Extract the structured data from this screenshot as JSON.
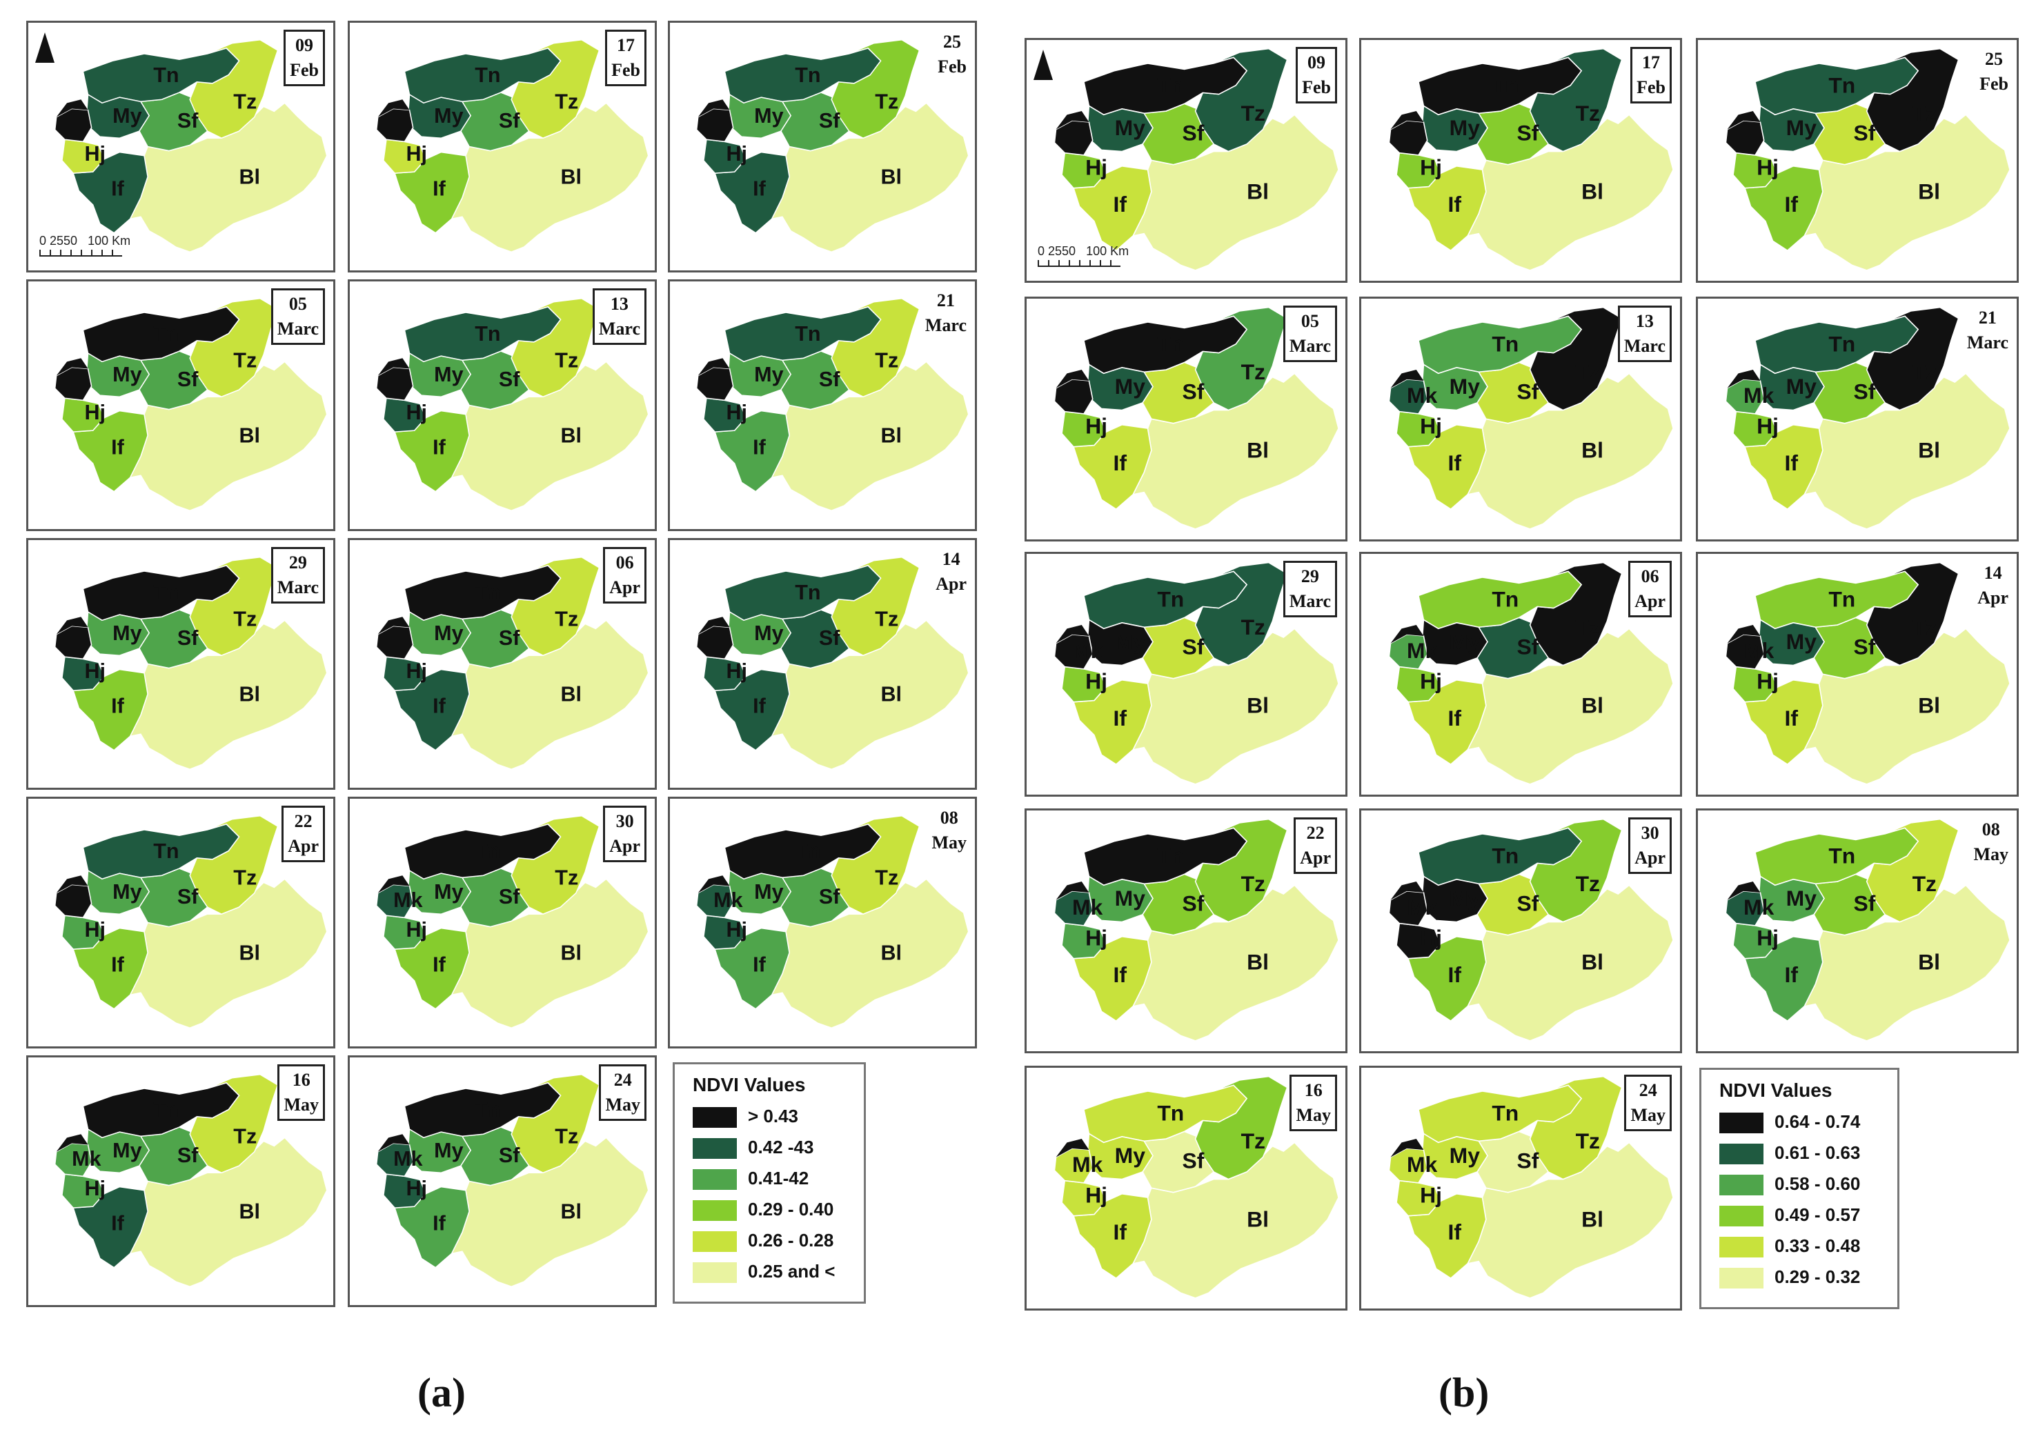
{
  "panel_a": {
    "caption": "(a)",
    "legend_title": "NDVI Values",
    "classes": [
      {
        "label": "> 0.43",
        "color": "#111111"
      },
      {
        "label": "0.42 -43",
        "color": "#1f5a40"
      },
      {
        "label": "0.41-42",
        "color": "#4fa54b"
      },
      {
        "label": "0.29 - 0.40",
        "color": "#86cc2d"
      },
      {
        "label": "0.26 - 0.28",
        "color": "#c8e23c"
      },
      {
        "label": "0.25 and <",
        "color": "#e9f3a0"
      }
    ],
    "scale": {
      "ticks": "0 2550",
      "end": "100 Km"
    },
    "dates": [
      {
        "day": "09",
        "month": "Feb"
      },
      {
        "day": "17",
        "month": "Feb"
      },
      {
        "day": "25",
        "month": "Feb"
      },
      {
        "day": "05",
        "month": "Marc"
      },
      {
        "day": "13",
        "month": "Marc"
      },
      {
        "day": "21",
        "month": "Marc"
      },
      {
        "day": "29",
        "month": "Marc"
      },
      {
        "day": "06",
        "month": "Apr"
      },
      {
        "day": "14",
        "month": "Apr"
      },
      {
        "day": "22",
        "month": "Apr"
      },
      {
        "day": "30",
        "month": "Apr"
      },
      {
        "day": "08",
        "month": "May"
      },
      {
        "day": "16",
        "month": "May"
      },
      {
        "day": "24",
        "month": "May"
      }
    ],
    "maps": [
      {
        "Tn": 1,
        "Tz": 4,
        "My": 1,
        "Sf": 2,
        "If": 1,
        "Hj": 4,
        "Mk": 0,
        "Bl": 5
      },
      {
        "Tn": 1,
        "Tz": 4,
        "My": 1,
        "Sf": 2,
        "If": 3,
        "Hj": 4,
        "Mk": 0,
        "Bl": 5
      },
      {
        "Tn": 1,
        "Tz": 3,
        "My": 2,
        "Sf": 2,
        "If": 1,
        "Hj": 1,
        "Mk": 0,
        "Bl": 5
      },
      {
        "Tn": 0,
        "Tz": 4,
        "My": 2,
        "Sf": 2,
        "If": 3,
        "Hj": 3,
        "Mk": 0,
        "Bl": 5
      },
      {
        "Tn": 1,
        "Tz": 4,
        "My": 2,
        "Sf": 2,
        "If": 3,
        "Hj": 1,
        "Mk": 0,
        "Bl": 5
      },
      {
        "Tn": 1,
        "Tz": 4,
        "My": 2,
        "Sf": 2,
        "If": 2,
        "Hj": 1,
        "Mk": 0,
        "Bl": 5
      },
      {
        "Tn": 0,
        "Tz": 4,
        "My": 2,
        "Sf": 2,
        "If": 3,
        "Hj": 1,
        "Mk": 0,
        "Bl": 5
      },
      {
        "Tn": 0,
        "Tz": 4,
        "My": 2,
        "Sf": 2,
        "If": 1,
        "Hj": 1,
        "Mk": 0,
        "Bl": 5
      },
      {
        "Tn": 1,
        "Tz": 4,
        "My": 2,
        "Sf": 1,
        "If": 1,
        "Hj": 1,
        "Mk": 0,
        "Bl": 5
      },
      {
        "Tn": 1,
        "Tz": 4,
        "My": 2,
        "Sf": 2,
        "If": 3,
        "Hj": 2,
        "Mk": 0,
        "Bl": 5
      },
      {
        "Tn": 0,
        "Tz": 4,
        "My": 2,
        "Sf": 2,
        "If": 3,
        "Hj": 2,
        "Mk": 1,
        "Bl": 5
      },
      {
        "Tn": 0,
        "Tz": 4,
        "My": 2,
        "Sf": 2,
        "If": 2,
        "Hj": 1,
        "Mk": 1,
        "Bl": 5
      },
      {
        "Tn": 0,
        "Tz": 4,
        "My": 2,
        "Sf": 2,
        "If": 1,
        "Hj": 2,
        "Mk": 2,
        "Bl": 5
      },
      {
        "Tn": 0,
        "Tz": 4,
        "My": 2,
        "Sf": 2,
        "If": 2,
        "Hj": 1,
        "Mk": 1,
        "Bl": 5
      }
    ]
  },
  "panel_b": {
    "caption": "(b)",
    "legend_title": "NDVI Values",
    "classes": [
      {
        "label": "0.64 - 0.74",
        "color": "#111111"
      },
      {
        "label": "0.61 - 0.63",
        "color": "#1f5a40"
      },
      {
        "label": "0.58 - 0.60",
        "color": "#4fa54b"
      },
      {
        "label": "0.49 - 0.57",
        "color": "#86cc2d"
      },
      {
        "label": "0.33 - 0.48",
        "color": "#c8e23c"
      },
      {
        "label": "0.29 - 0.32",
        "color": "#e9f3a0"
      }
    ],
    "scale": {
      "ticks": "0 2550",
      "end": "100 Km"
    },
    "dates": [
      {
        "day": "09",
        "month": "Feb"
      },
      {
        "day": "17",
        "month": "Feb"
      },
      {
        "day": "25",
        "month": "Feb"
      },
      {
        "day": "05",
        "month": "Marc"
      },
      {
        "day": "13",
        "month": "Marc"
      },
      {
        "day": "21",
        "month": "Marc"
      },
      {
        "day": "29",
        "month": "Marc"
      },
      {
        "day": "06",
        "month": "Apr"
      },
      {
        "day": "14",
        "month": "Apr"
      },
      {
        "day": "22",
        "month": "Apr"
      },
      {
        "day": "30",
        "month": "Apr"
      },
      {
        "day": "08",
        "month": "May"
      },
      {
        "day": "16",
        "month": "May"
      },
      {
        "day": "24",
        "month": "May"
      }
    ],
    "maps": [
      {
        "Tn": 0,
        "Tz": 1,
        "My": 1,
        "Sf": 3,
        "If": 4,
        "Hj": 3,
        "Mk": 0,
        "Bl": 5
      },
      {
        "Tn": 0,
        "Tz": 1,
        "My": 1,
        "Sf": 3,
        "If": 4,
        "Hj": 3,
        "Mk": 0,
        "Bl": 5
      },
      {
        "Tn": 1,
        "Tz": 0,
        "My": 1,
        "Sf": 4,
        "If": 3,
        "Hj": 3,
        "Mk": 0,
        "Bl": 5
      },
      {
        "Tn": 0,
        "Tz": 2,
        "My": 1,
        "Sf": 4,
        "If": 4,
        "Hj": 3,
        "Mk": 0,
        "Bl": 5
      },
      {
        "Tn": 2,
        "Tz": 0,
        "My": 2,
        "Sf": 4,
        "If": 4,
        "Hj": 3,
        "Mk": 1,
        "Bl": 5
      },
      {
        "Tn": 1,
        "Tz": 0,
        "My": 1,
        "Sf": 3,
        "If": 4,
        "Hj": 3,
        "Mk": 2,
        "Bl": 5
      },
      {
        "Tn": 1,
        "Tz": 1,
        "My": 0,
        "Sf": 4,
        "If": 4,
        "Hj": 3,
        "Mk": 0,
        "Bl": 5
      },
      {
        "Tn": 3,
        "Tz": 0,
        "My": 0,
        "Sf": 1,
        "If": 4,
        "Hj": 3,
        "Mk": 2,
        "Bl": 5
      },
      {
        "Tn": 3,
        "Tz": 0,
        "My": 1,
        "Sf": 3,
        "If": 4,
        "Hj": 3,
        "Mk": 0,
        "Bl": 5
      },
      {
        "Tn": 0,
        "Tz": 3,
        "My": 2,
        "Sf": 3,
        "If": 4,
        "Hj": 2,
        "Mk": 1,
        "Bl": 5
      },
      {
        "Tn": 1,
        "Tz": 3,
        "My": 0,
        "Sf": 4,
        "If": 3,
        "Hj": 0,
        "Mk": 0,
        "Bl": 5
      },
      {
        "Tn": 3,
        "Tz": 4,
        "My": 2,
        "Sf": 3,
        "If": 2,
        "Hj": 2,
        "Mk": 1,
        "Bl": 5
      },
      {
        "Tn": 4,
        "Tz": 3,
        "My": 4,
        "Sf": 5,
        "If": 4,
        "Hj": 4,
        "Mk": 4,
        "Bl": 5
      },
      {
        "Tn": 4,
        "Tz": 4,
        "My": 4,
        "Sf": 5,
        "If": 4,
        "Hj": 4,
        "Mk": 4,
        "Bl": 5
      }
    ]
  }
}
